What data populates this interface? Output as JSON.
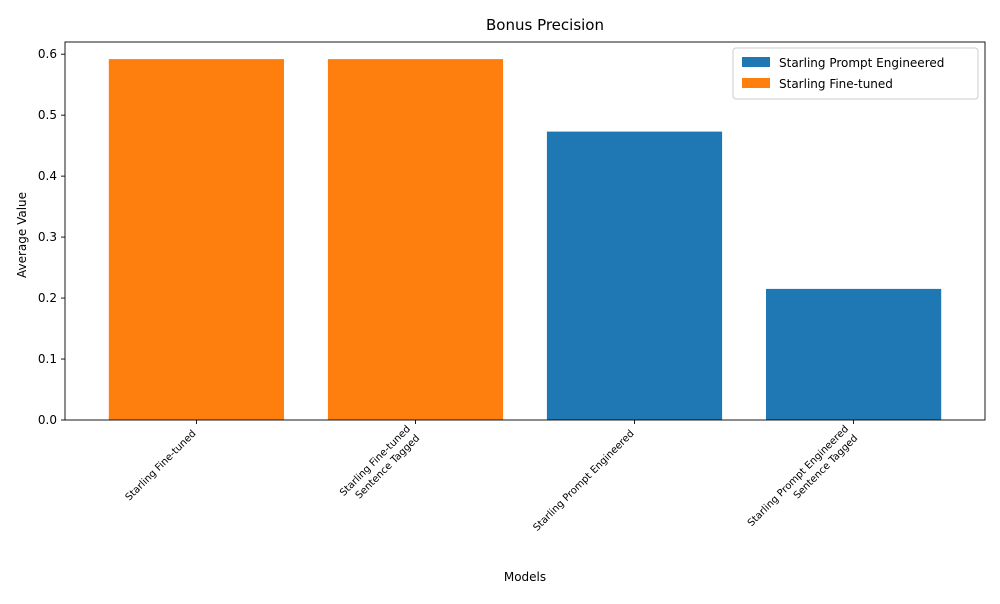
{
  "chart_data": {
    "type": "bar",
    "title": "Bonus Precision",
    "xlabel": "Models",
    "ylabel": "Average Value",
    "ylim": [
      0,
      0.62
    ],
    "yticks": [
      0.0,
      0.1,
      0.2,
      0.3,
      0.4,
      0.5,
      0.6
    ],
    "ytick_labels": [
      "0.0",
      "0.1",
      "0.2",
      "0.3",
      "0.4",
      "0.5",
      "0.6"
    ],
    "categories": [
      [
        "Starling Fine-tuned"
      ],
      [
        "Starling Fine-tuned",
        "Sentence Tagged"
      ],
      [
        "Starling Prompt Engineered"
      ],
      [
        "Starling Prompt Engineered",
        "Sentence Tagged"
      ]
    ],
    "values": [
      0.592,
      0.592,
      0.473,
      0.215
    ],
    "bar_series": [
      1,
      1,
      0,
      0
    ],
    "series": [
      {
        "name": "Starling Prompt Engineered",
        "color": "#1f77b4"
      },
      {
        "name": "Starling Fine-tuned",
        "color": "#ff7f0e"
      }
    ],
    "legend_position": "top-right",
    "grid": false
  }
}
